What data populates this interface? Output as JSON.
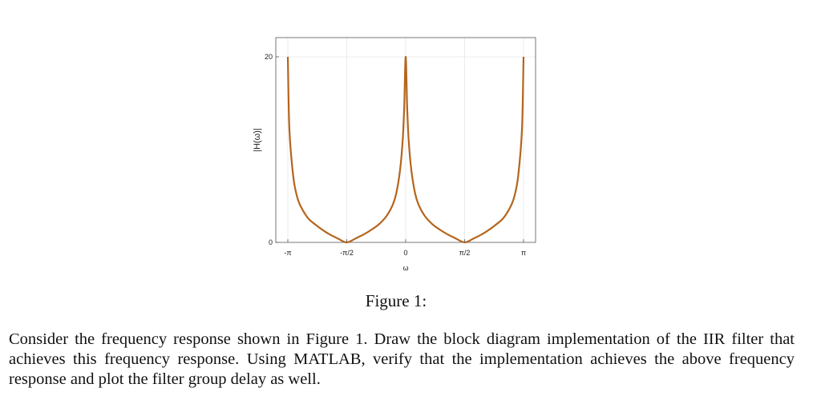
{
  "chart_data": {
    "type": "line",
    "xlabel": "ω",
    "ylabel": "|H(ω)|",
    "xlim": [
      -3.14159,
      3.14159
    ],
    "ylim": [
      0,
      20
    ],
    "x_ticks": [
      {
        "value": -3.14159,
        "label": "-π"
      },
      {
        "value": -1.5708,
        "label": "-π/2"
      },
      {
        "value": 0,
        "label": "0"
      },
      {
        "value": 1.5708,
        "label": "π/2"
      },
      {
        "value": 3.14159,
        "label": "π"
      }
    ],
    "y_ticks": [
      {
        "value": 0,
        "label": "0"
      },
      {
        "value": 20,
        "label": "20"
      }
    ],
    "grid": true,
    "line_color": "#b5651d",
    "series": [
      {
        "x": [
          -3.14159,
          -3.1,
          -3.0,
          -2.9,
          -2.8,
          -2.6,
          -2.4,
          -2.2,
          -2.0,
          -1.8,
          -1.5708,
          -1.3,
          -1.1,
          -0.9,
          -0.7,
          -0.5,
          -0.35,
          -0.25,
          -0.15,
          -0.08,
          -0.04,
          0,
          0.04,
          0.08,
          0.15,
          0.25,
          0.35,
          0.5,
          0.7,
          0.9,
          1.1,
          1.3,
          1.5708,
          1.8,
          2.0,
          2.2,
          2.4,
          2.6,
          2.8,
          2.9,
          3.0,
          3.1,
          3.14159
        ],
        "y": [
          20,
          12.2,
          7.2,
          5.0,
          3.9,
          2.6,
          1.9,
          1.3,
          0.8,
          0.4,
          0,
          0.5,
          0.9,
          1.4,
          2.0,
          2.9,
          4.0,
          5.3,
          7.8,
          11.0,
          14.5,
          20,
          14.5,
          11.0,
          7.8,
          5.3,
          4.0,
          2.9,
          2.0,
          1.4,
          0.9,
          0.5,
          0,
          0.4,
          0.8,
          1.3,
          1.9,
          2.6,
          3.9,
          5.0,
          7.2,
          12.2,
          20
        ]
      }
    ]
  },
  "caption": "Figure 1:",
  "body_text": "Consider the frequency response shown in Figure 1. Draw the block diagram implementation of the IIR filter that achieves this frequency response. Using MATLAB, verify that the implementation achieves the above frequency response and plot the filter group delay as well."
}
